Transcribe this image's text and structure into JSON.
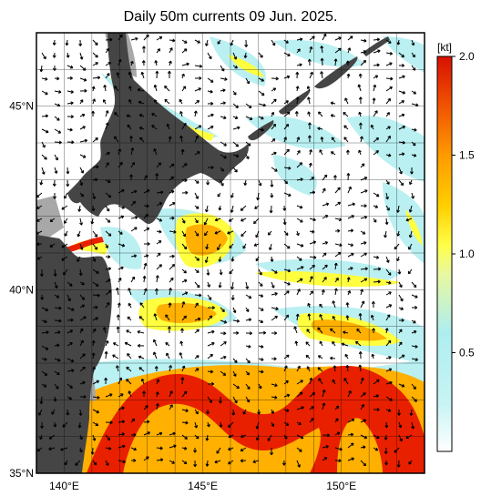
{
  "title": "Daily 50m currents 09 Jun. 2025.",
  "map": {
    "lon_range": [
      139,
      153
    ],
    "lat_range": [
      35,
      47
    ],
    "lon_ticks": [
      {
        "value": 140,
        "label": "140°E"
      },
      {
        "value": 145,
        "label": "145°E"
      },
      {
        "value": 150,
        "label": "150°E"
      }
    ],
    "lat_ticks": [
      {
        "value": 45,
        "label": "45°N"
      },
      {
        "value": 40,
        "label": "40°N"
      },
      {
        "value": 35,
        "label": "35°N"
      }
    ],
    "grid": true
  },
  "colorbar": {
    "unit": "[kt]",
    "range": [
      0,
      2.0
    ],
    "ticks": [
      {
        "value": 2.0,
        "label": "2.0"
      },
      {
        "value": 1.5,
        "label": "1.5"
      },
      {
        "value": 1.0,
        "label": "1.0"
      },
      {
        "value": 0.5,
        "label": "0.5"
      }
    ],
    "colors": [
      "#ffffff",
      "#aeeef0",
      "#ffff4a",
      "#ffd000",
      "#ff7a00",
      "#e01a00"
    ]
  },
  "colors": {
    "land": "#454545",
    "shelf": "#a8a8a8",
    "strong": "#e82000",
    "medium": "#ffb000",
    "weak": "#ffff40",
    "faint": "#aeeef0"
  }
}
